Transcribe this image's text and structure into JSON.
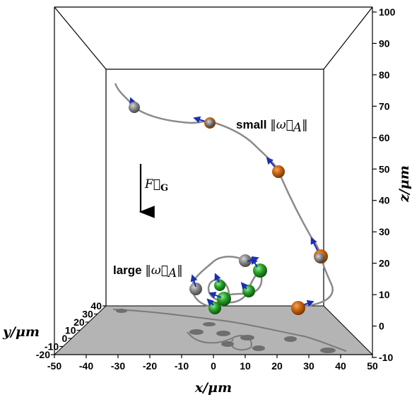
{
  "chart_data": {
    "type": "scatter",
    "projection": "3d-perspective",
    "title": "",
    "xlabel": "x/μm",
    "ylabel": "y/μm",
    "zlabel": "z/μm",
    "xlim": [
      -50,
      50
    ],
    "ylim": [
      -20,
      40
    ],
    "zlim": [
      -10,
      100
    ],
    "x_ticks": [
      "-50",
      "-40",
      "-30",
      "-20",
      "-10",
      "0",
      "10",
      "20",
      "30",
      "40",
      "50"
    ],
    "y_ticks": [
      "-20",
      "-10",
      "0",
      "10",
      "20",
      "30",
      "40"
    ],
    "z_ticks": [
      "-10",
      "0",
      "10",
      "20",
      "30",
      "40",
      "50",
      "60",
      "70",
      "80",
      "90",
      "100"
    ],
    "floor_color": "#b4b4b4",
    "bead_colors": {
      "grey": "#7d7d7d",
      "orange": "#c8650e",
      "green": "#2aa02a",
      "arrow": "#1a2fb5"
    },
    "annotations": {
      "small": {
        "prefix": "small ",
        "omega": "‖ω⃗",
        "sub": "A",
        "suffix": "‖"
      },
      "large": {
        "prefix": "large ",
        "omega": "‖ω⃗",
        "sub": "A",
        "suffix": "‖"
      },
      "force": {
        "symbol": "F⃗",
        "sub": "G"
      }
    },
    "series": [
      {
        "name": "small",
        "points": [
          {
            "x": -30,
            "y": 30,
            "z": 69
          },
          {
            "x": -13,
            "y": 30,
            "z": 65
          },
          {
            "x": 10,
            "y": 30,
            "z": 54
          },
          {
            "x": 20,
            "y": 30,
            "z": 47
          },
          {
            "x": 26,
            "y": 30,
            "z": 32
          },
          {
            "x": 32,
            "y": 30,
            "z": 12
          },
          {
            "x": 28,
            "y": 22,
            "z": 4
          }
        ]
      },
      {
        "name": "large",
        "points": [
          {
            "x": -8,
            "y": 30,
            "z": 32
          },
          {
            "x": -3,
            "y": 30,
            "z": 22
          },
          {
            "x": 5,
            "y": 30,
            "z": 19
          },
          {
            "x": 12,
            "y": 30,
            "z": 27
          },
          {
            "x": 16,
            "y": 30,
            "z": 31
          },
          {
            "x": -3,
            "y": 30,
            "z": 15
          },
          {
            "x": 11,
            "y": 30,
            "z": 18
          },
          {
            "x": -10,
            "y": 22,
            "z": 8
          }
        ]
      }
    ]
  }
}
